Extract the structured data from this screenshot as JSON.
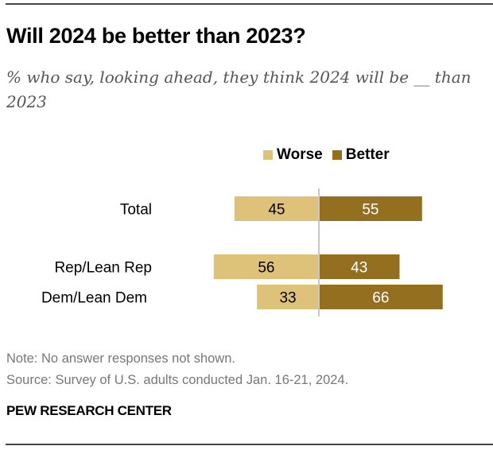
{
  "title": "Will 2024 be better than 2023?",
  "subtitle": "% who say, looking ahead, they think 2024 will be __ than 2023",
  "note": "Note: No answer responses not shown.",
  "source": "Source: Survey of U.S. adults conducted Jan. 16-21, 2024.",
  "brand": "PEW RESEARCH CENTER",
  "colors": {
    "worse": "#DFC27A",
    "better": "#946F20",
    "axis": "#c8c8c8"
  },
  "chart_data": {
    "type": "bar",
    "orientation": "horizontal-diverging",
    "title": "Will 2024 be better than 2023?",
    "subtitle": "% who say, looking ahead, they think 2024 will be __ than 2023",
    "categories": [
      "Total",
      "Rep/Lean Rep",
      "Dem/Lean Dem"
    ],
    "series": [
      {
        "name": "Worse",
        "values": [
          45,
          56,
          33
        ]
      },
      {
        "name": "Better",
        "values": [
          55,
          43,
          66
        ]
      }
    ],
    "legend": [
      "Worse",
      "Better"
    ],
    "legend_position": "top",
    "xlabel": "",
    "ylabel": "",
    "grid": false
  }
}
